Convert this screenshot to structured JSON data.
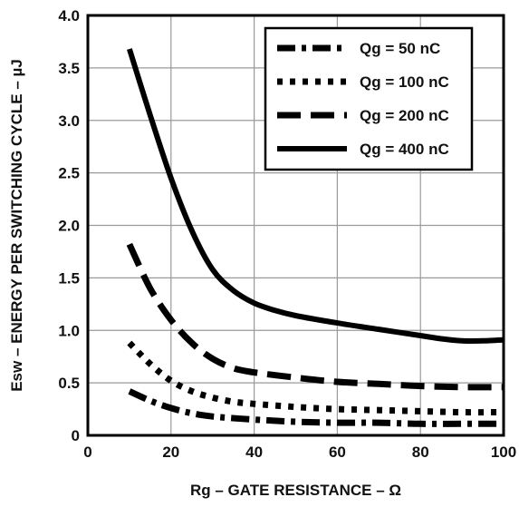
{
  "chart_data": {
    "type": "line",
    "title": "",
    "xlabel": "Rg – GATE RESISTANCE  – Ω",
    "ylabel": "Esw – ENERGY PER SWITCHING CYCLE – µJ",
    "xlim": [
      0,
      100
    ],
    "ylim": [
      0,
      4.0
    ],
    "x_ticks": [
      "0",
      "20",
      "40",
      "60",
      "80",
      "100"
    ],
    "y_ticks": [
      "0",
      "0.5",
      "1.0",
      "1.5",
      "2.0",
      "2.5",
      "3.0",
      "3.5",
      "4.0"
    ],
    "grid": true,
    "legend_position": "top-right",
    "series": [
      {
        "name": "Qg = 50 nC",
        "line_style": "dash-dot",
        "x": [
          10,
          15,
          20,
          25,
          30,
          40,
          50,
          60,
          70,
          80,
          90,
          100
        ],
        "y": [
          0.42,
          0.33,
          0.26,
          0.21,
          0.18,
          0.15,
          0.13,
          0.12,
          0.12,
          0.11,
          0.11,
          0.11
        ]
      },
      {
        "name": "Qg = 100 nC",
        "line_style": "dotted",
        "x": [
          10,
          15,
          20,
          25,
          30,
          35,
          40,
          50,
          60,
          70,
          80,
          90,
          100
        ],
        "y": [
          0.88,
          0.68,
          0.52,
          0.42,
          0.36,
          0.32,
          0.3,
          0.27,
          0.25,
          0.24,
          0.23,
          0.22,
          0.22
        ]
      },
      {
        "name": "Qg = 200 nC",
        "line_style": "dashed",
        "x": [
          10,
          15,
          20,
          25,
          30,
          35,
          40,
          50,
          60,
          70,
          80,
          90,
          100
        ],
        "y": [
          1.82,
          1.4,
          1.1,
          0.88,
          0.73,
          0.64,
          0.6,
          0.55,
          0.51,
          0.49,
          0.47,
          0.46,
          0.46
        ]
      },
      {
        "name": "Qg = 400 nC",
        "line_style": "solid",
        "x": [
          10,
          15,
          20,
          25,
          30,
          35,
          40,
          45,
          50,
          60,
          70,
          80,
          85,
          90,
          95,
          100
        ],
        "y": [
          3.68,
          3.05,
          2.45,
          1.95,
          1.58,
          1.38,
          1.26,
          1.19,
          1.14,
          1.07,
          1.01,
          0.95,
          0.92,
          0.9,
          0.9,
          0.91
        ]
      }
    ],
    "colors": {
      "line": "#000000",
      "grid": "#9a9a9a",
      "frame": "#000000"
    }
  }
}
